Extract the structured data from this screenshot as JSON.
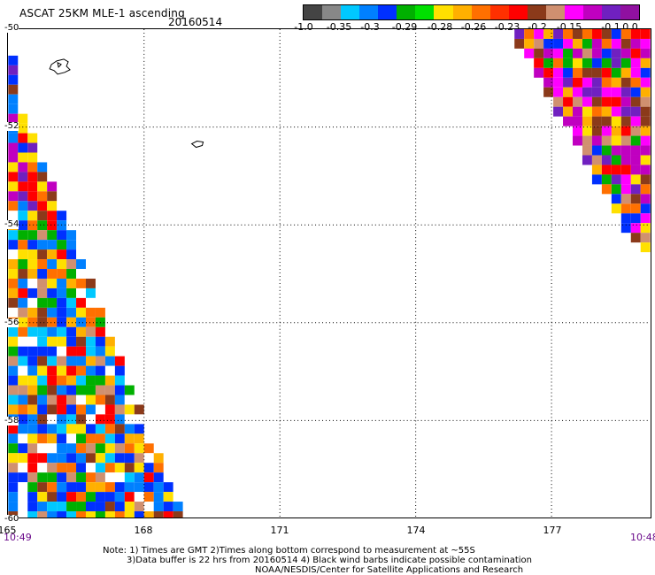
{
  "header": {
    "title": "ASCAT 25KM MLE-1 ascending",
    "date": "20160514"
  },
  "colorbar": {
    "colors": [
      "#444444",
      "#888888",
      "#00c8ff",
      "#0080ff",
      "#0030ff",
      "#00b000",
      "#00e000",
      "#ffe000",
      "#ffb000",
      "#ff7000",
      "#ff3000",
      "#ff0000",
      "#8b3a1a",
      "#d09070",
      "#ff00ff",
      "#c000c0",
      "#7020c0",
      "#9010a0"
    ],
    "labels": [
      "-1.0",
      "-0.35",
      "-0.3",
      "-0.29",
      "-0.28",
      "-0.26",
      "-0.23",
      "-0.2",
      "-0.15",
      "-0.1",
      "0.0"
    ]
  },
  "map": {
    "x_ticks": [
      "165",
      "168",
      "171",
      "174",
      "177"
    ],
    "y_ticks": [
      "-50",
      "-52",
      "-54",
      "-56",
      "-58",
      "-60"
    ],
    "time_left": "10:49",
    "time_right": "10:48",
    "swath_palette": [
      "#0030ff",
      "#0080ff",
      "#00c8ff",
      "#00b000",
      "#ffe000",
      "#ffb000",
      "#ff7000",
      "#ff0000",
      "#8b3a1a",
      "#d09070",
      "#ff00ff",
      "#c000c0",
      "#7020c0",
      "#ffffff",
      "#ff8080"
    ]
  },
  "notes": {
    "line1": "Note: 1) Times are GMT 2)Times along bottom correspond to measurement at ~55S",
    "line2": "3)Data buffer is 22 hrs from 20160514 4) Black wind barbs indicate possible contamination",
    "line3": "NOAA/NESDIS/Center for Satellite Applications and Research"
  }
}
